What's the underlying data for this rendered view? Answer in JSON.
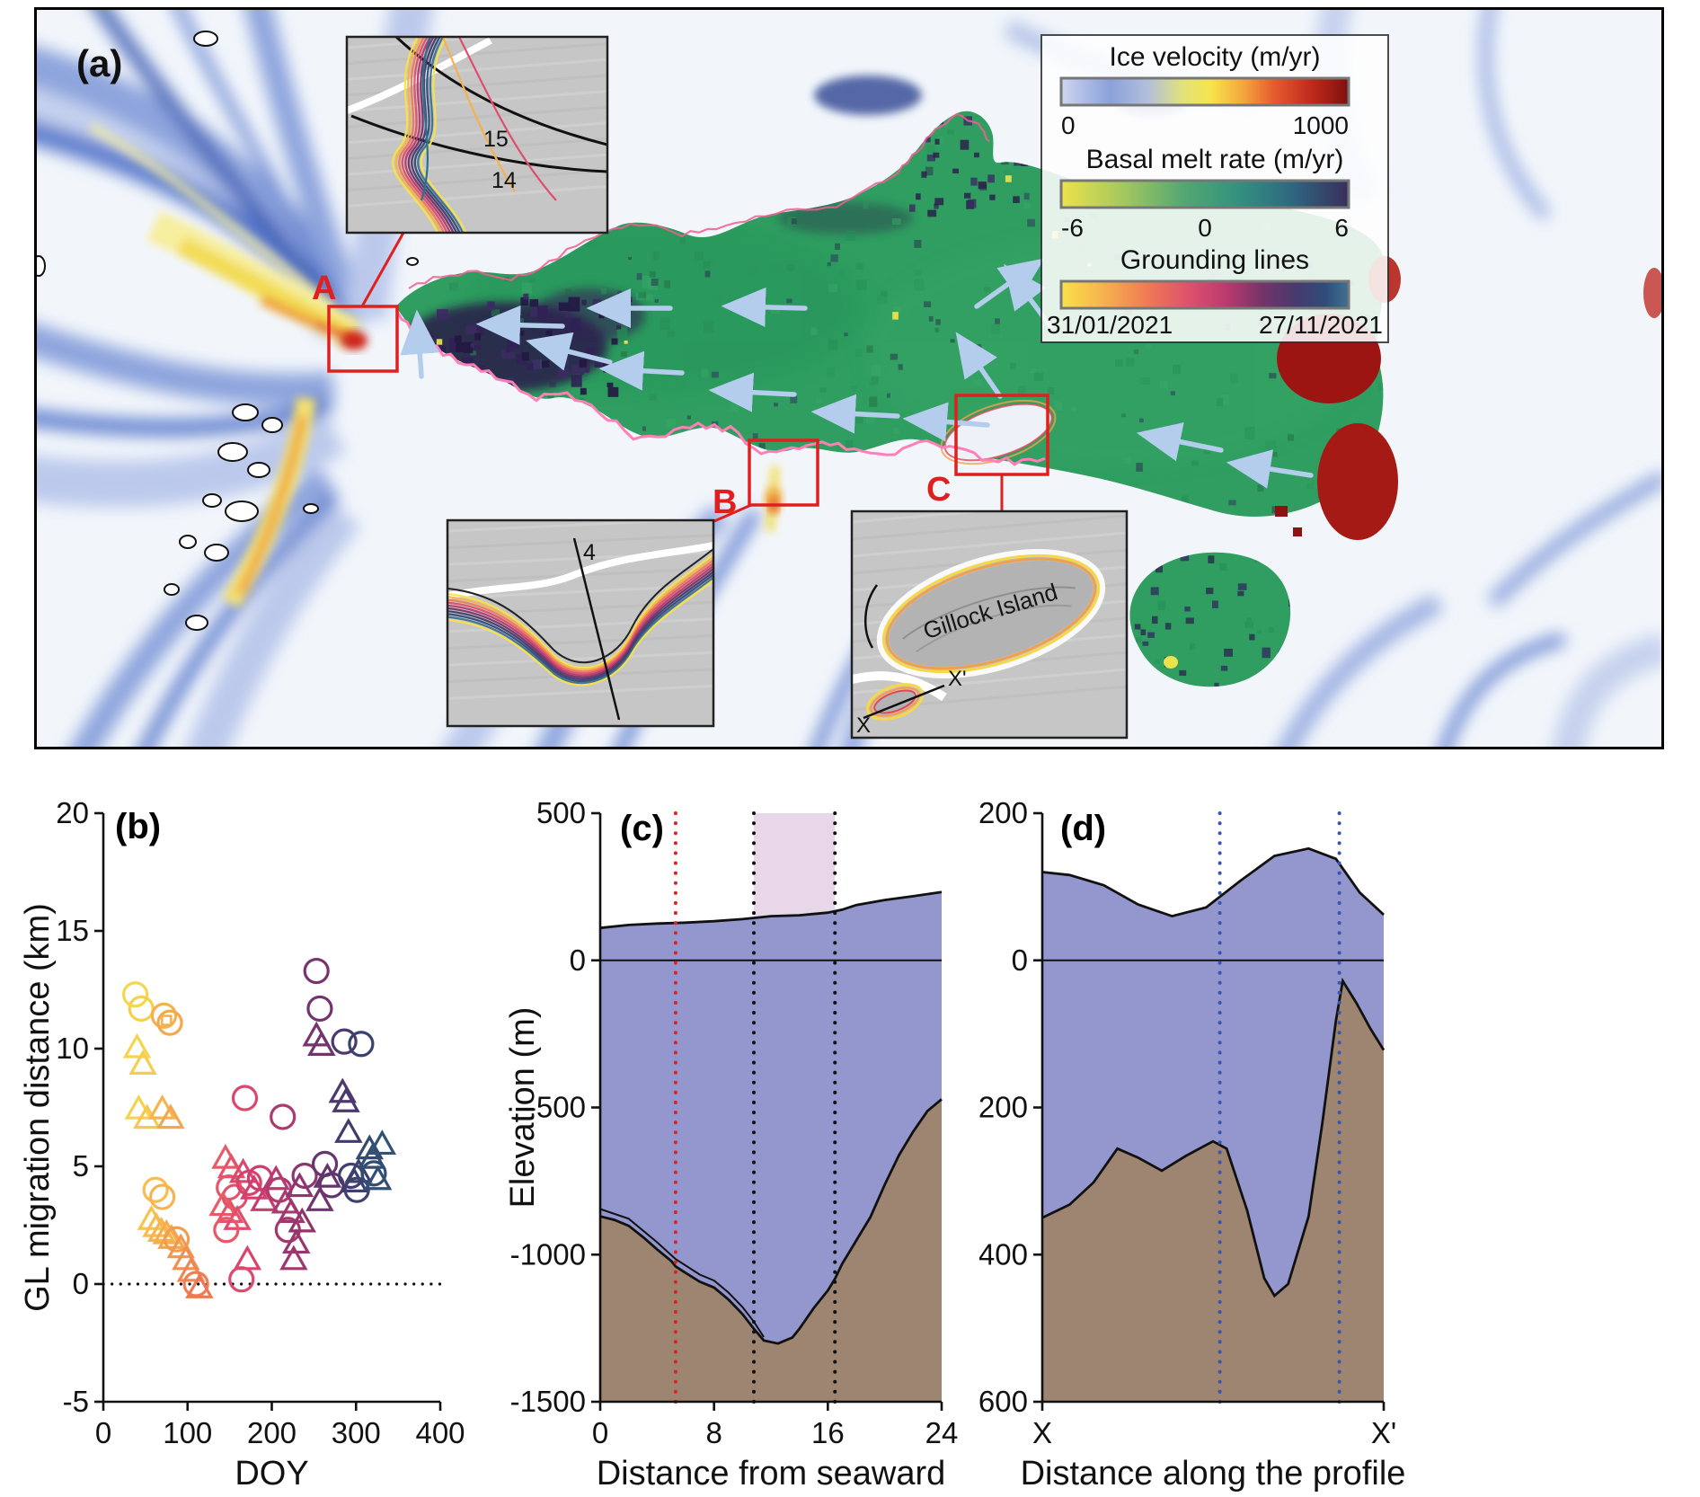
{
  "figure": {
    "panel_labels": {
      "a": "(a)",
      "b": "(b)",
      "c": "(c)",
      "d": "(d)"
    }
  },
  "map": {
    "markers": {
      "a_label": "A",
      "b_label": "B",
      "c_label": "C"
    },
    "insets": {
      "top": {
        "line_labels": [
          "15",
          "14"
        ]
      },
      "middle": {
        "line_label": "4"
      },
      "island": {
        "name": "Gillock Island",
        "profile_start": "X",
        "profile_end": "X'"
      }
    },
    "legend": {
      "bars": [
        {
          "title": "Ice velocity (m/yr)",
          "ticks": [
            "0",
            "1000"
          ],
          "stops": [
            [
              0,
              "#ced6ee"
            ],
            [
              0.17,
              "#8ba1da"
            ],
            [
              0.3,
              "#b2bedd"
            ],
            [
              0.42,
              "#e0e27c"
            ],
            [
              0.52,
              "#f6e44c"
            ],
            [
              0.63,
              "#f5a83e"
            ],
            [
              0.74,
              "#e65b2e"
            ],
            [
              0.87,
              "#c02a1c"
            ],
            [
              1,
              "#7d100e"
            ]
          ]
        },
        {
          "title": "Basal melt rate (m/yr)",
          "ticks": [
            "-6",
            "0",
            "6"
          ],
          "stops": [
            [
              0,
              "#ece24b"
            ],
            [
              0.22,
              "#a3c75f"
            ],
            [
              0.42,
              "#55a872"
            ],
            [
              0.62,
              "#33907e"
            ],
            [
              0.8,
              "#2f6880"
            ],
            [
              1,
              "#392e5b"
            ]
          ]
        },
        {
          "title": "Grounding lines",
          "ticks": [
            "31/01/2021",
            "27/11/2021"
          ],
          "stops": [
            [
              0,
              "#f8e24a"
            ],
            [
              0.15,
              "#f6b14f"
            ],
            [
              0.3,
              "#ef7a55"
            ],
            [
              0.45,
              "#dd4f6d"
            ],
            [
              0.58,
              "#b83a6e"
            ],
            [
              0.7,
              "#743468"
            ],
            [
              0.82,
              "#463a6e"
            ],
            [
              0.92,
              "#2f4d79"
            ],
            [
              1,
              "#3f7291"
            ]
          ]
        }
      ]
    },
    "colors": {
      "ice_shelf_green": "#2f9e60",
      "grounding_line_pink": "#ff7fb7",
      "highlight_box_red": "#e01f1f",
      "flow_arrow_blue": "#b4cdec"
    }
  },
  "chart_data": [
    {
      "type": "scatter",
      "panel": "b",
      "xlabel": "DOY",
      "ylabel": "GL migration distance (km)",
      "xlim": [
        0,
        400
      ],
      "ylim": [
        -5,
        20
      ],
      "x_ticks": [
        0,
        100,
        200,
        300,
        400
      ],
      "y_ticks": [
        -5,
        0,
        5,
        10,
        15,
        20
      ],
      "zero_line": true,
      "colormap_stops": [
        [
          30,
          "#f3df4c"
        ],
        [
          60,
          "#f6c14e"
        ],
        [
          90,
          "#f29a4e"
        ],
        [
          120,
          "#ed7058"
        ],
        [
          150,
          "#e4556c"
        ],
        [
          180,
          "#d23f6e"
        ],
        [
          210,
          "#b03a6e"
        ],
        [
          240,
          "#8c356d"
        ],
        [
          265,
          "#66346f"
        ],
        [
          290,
          "#46396e"
        ],
        [
          315,
          "#34496f"
        ],
        [
          340,
          "#30597c"
        ]
      ],
      "points": [
        [
          38,
          12.3,
          "c"
        ],
        [
          45,
          11.7,
          "c"
        ],
        [
          40,
          10,
          "t"
        ],
        [
          47,
          9.3,
          "t"
        ],
        [
          42,
          7.4,
          "t"
        ],
        [
          52,
          7,
          "t"
        ],
        [
          72,
          11.4,
          "c"
        ],
        [
          79,
          11.1,
          "c"
        ],
        [
          75,
          11.2,
          "s"
        ],
        [
          70,
          7.4,
          "t"
        ],
        [
          80,
          7,
          "t"
        ],
        [
          62,
          4,
          "c"
        ],
        [
          70,
          3.7,
          "c"
        ],
        [
          57,
          2.7,
          "t"
        ],
        [
          63,
          2.4,
          "t"
        ],
        [
          69,
          2.2,
          "t"
        ],
        [
          75,
          2.1,
          "t"
        ],
        [
          81,
          1.9,
          "t"
        ],
        [
          87,
          1.9,
          "c"
        ],
        [
          92,
          1.5,
          "t"
        ],
        [
          98,
          1,
          "t"
        ],
        [
          104,
          0.5,
          "t"
        ],
        [
          110,
          0,
          "c"
        ],
        [
          114,
          -0.2,
          "t"
        ],
        [
          168,
          7.9,
          "c"
        ],
        [
          145,
          5.3,
          "t"
        ],
        [
          152,
          4.9,
          "t"
        ],
        [
          149,
          4.1,
          "c"
        ],
        [
          156,
          3.7,
          "c"
        ],
        [
          142,
          3.3,
          "t"
        ],
        [
          150,
          3,
          "t"
        ],
        [
          159,
          2.7,
          "t"
        ],
        [
          146,
          2.3,
          "c"
        ],
        [
          166,
          4.7,
          "t"
        ],
        [
          173,
          4.3,
          "c"
        ],
        [
          179,
          4,
          "t"
        ],
        [
          186,
          4.5,
          "c"
        ],
        [
          191,
          3.5,
          "t"
        ],
        [
          171,
          1,
          "t"
        ],
        [
          164,
          0.2,
          "c"
        ],
        [
          213,
          7.1,
          "c"
        ],
        [
          205,
          4.4,
          "t"
        ],
        [
          209,
          4,
          "c"
        ],
        [
          216,
          3.4,
          "t"
        ],
        [
          223,
          3,
          "t"
        ],
        [
          219,
          2.3,
          "c"
        ],
        [
          229,
          1.7,
          "t"
        ],
        [
          233,
          4.1,
          "t"
        ],
        [
          239,
          4.6,
          "c"
        ],
        [
          226,
          1,
          "t"
        ],
        [
          236,
          2.6,
          "t"
        ],
        [
          253,
          13.3,
          "c"
        ],
        [
          257,
          11.7,
          "c"
        ],
        [
          253,
          10.5,
          "t"
        ],
        [
          259,
          10.1,
          "t"
        ],
        [
          263,
          5.1,
          "c"
        ],
        [
          266,
          4.5,
          "t"
        ],
        [
          271,
          4.2,
          "c"
        ],
        [
          257,
          3.5,
          "t"
        ],
        [
          286,
          10.3,
          "c"
        ],
        [
          306,
          10.2,
          "c"
        ],
        [
          284,
          8.1,
          "t"
        ],
        [
          288,
          7.7,
          "t"
        ],
        [
          291,
          6.4,
          "t"
        ],
        [
          294,
          4.6,
          "c"
        ],
        [
          298,
          4.3,
          "t"
        ],
        [
          303,
          4.7,
          "t"
        ],
        [
          301,
          4,
          "c"
        ],
        [
          316,
          5.7,
          "t"
        ],
        [
          319,
          5.3,
          "t"
        ],
        [
          321,
          4.7,
          "c"
        ],
        [
          326,
          4.4,
          "t"
        ],
        [
          331,
          5.9,
          "t"
        ]
      ]
    },
    {
      "type": "area-profile",
      "panel": "c",
      "xlabel": "Distance from seaward",
      "ylabel": "Elevation (m)",
      "xlim": [
        0,
        24
      ],
      "ylim": [
        -1500,
        500
      ],
      "x_ticks": [
        0,
        8,
        16,
        24
      ],
      "y_ticks": [
        500,
        0,
        -500,
        -1000,
        -1500
      ],
      "surface": [
        [
          0,
          110
        ],
        [
          2,
          120
        ],
        [
          4,
          125
        ],
        [
          6,
          128
        ],
        [
          8,
          133
        ],
        [
          10,
          140
        ],
        [
          12,
          150
        ],
        [
          14,
          153
        ],
        [
          16,
          162
        ],
        [
          17,
          172
        ],
        [
          18,
          188
        ],
        [
          20,
          205
        ],
        [
          22,
          218
        ],
        [
          24,
          232
        ]
      ],
      "bed": [
        [
          0,
          -870
        ],
        [
          1,
          -882
        ],
        [
          2,
          -902
        ],
        [
          3,
          -940
        ],
        [
          4,
          -982
        ],
        [
          5,
          -1022
        ],
        [
          5.3,
          -1040
        ],
        [
          6,
          -1062
        ],
        [
          7,
          -1092
        ],
        [
          8,
          -1112
        ],
        [
          9,
          -1152
        ],
        [
          10,
          -1202
        ],
        [
          10.8,
          -1252
        ],
        [
          11.5,
          -1292
        ],
        [
          12.5,
          -1302
        ],
        [
          13.5,
          -1282
        ],
        [
          14,
          -1252
        ],
        [
          15,
          -1182
        ],
        [
          16,
          -1122
        ],
        [
          16.5,
          -1082
        ],
        [
          17,
          -1032
        ],
        [
          18,
          -952
        ],
        [
          19,
          -872
        ],
        [
          20,
          -762
        ],
        [
          21,
          -662
        ],
        [
          22,
          -582
        ],
        [
          23,
          -512
        ],
        [
          24,
          -472
        ]
      ],
      "ice_base": [
        [
          0,
          -845
        ],
        [
          2,
          -878
        ],
        [
          4,
          -958
        ],
        [
          5.3,
          -1015
        ],
        [
          7,
          -1068
        ],
        [
          8,
          -1088
        ],
        [
          9,
          -1128
        ],
        [
          10,
          -1178
        ],
        [
          10.8,
          -1228
        ],
        [
          11.5,
          -1280
        ]
      ],
      "vlines": [
        {
          "x": 5.3,
          "color": "#dd2222"
        },
        {
          "x": 10.8,
          "color": "#111111"
        },
        {
          "x": 16.5,
          "color": "#111111"
        }
      ],
      "shaded_region": {
        "x0": 10.8,
        "x1": 16.5,
        "y_top": 500,
        "y_bottom": 150,
        "color": "#e8d7e8"
      },
      "zero_line": true,
      "colors": {
        "ice": "#9397cd",
        "bed": "#9d8571"
      }
    },
    {
      "type": "area-profile",
      "panel": "d",
      "xlabel": "Distance along the profile",
      "ylabel": "",
      "xlim": [
        0,
        1
      ],
      "ylim": [
        -600,
        200
      ],
      "x_ticks_labels": [
        "X",
        "X'"
      ],
      "y_ticks": [
        200,
        0,
        -200,
        -400,
        -600
      ],
      "surface": [
        [
          0,
          120
        ],
        [
          0.08,
          116
        ],
        [
          0.18,
          102
        ],
        [
          0.28,
          76
        ],
        [
          0.38,
          60
        ],
        [
          0.48,
          72
        ],
        [
          0.58,
          108
        ],
        [
          0.68,
          142
        ],
        [
          0.78,
          152
        ],
        [
          0.86,
          138
        ],
        [
          0.93,
          92
        ],
        [
          1,
          62
        ]
      ],
      "bed": [
        [
          0,
          -350
        ],
        [
          0.08,
          -332
        ],
        [
          0.15,
          -302
        ],
        [
          0.22,
          -256
        ],
        [
          0.28,
          -268
        ],
        [
          0.35,
          -286
        ],
        [
          0.42,
          -266
        ],
        [
          0.5,
          -246
        ],
        [
          0.54,
          -256
        ],
        [
          0.6,
          -340
        ],
        [
          0.65,
          -432
        ],
        [
          0.68,
          -456
        ],
        [
          0.72,
          -440
        ],
        [
          0.78,
          -348
        ],
        [
          0.82,
          -222
        ],
        [
          0.86,
          -82
        ],
        [
          0.88,
          -28
        ],
        [
          0.92,
          -58
        ],
        [
          0.96,
          -92
        ],
        [
          1,
          -122
        ]
      ],
      "vlines": [
        {
          "x": 0.52,
          "color": "#3a55b0"
        },
        {
          "x": 0.87,
          "color": "#3a55b0"
        }
      ],
      "zero_line": true,
      "colors": {
        "ice": "#9397cd",
        "bed": "#9d8571"
      }
    }
  ]
}
